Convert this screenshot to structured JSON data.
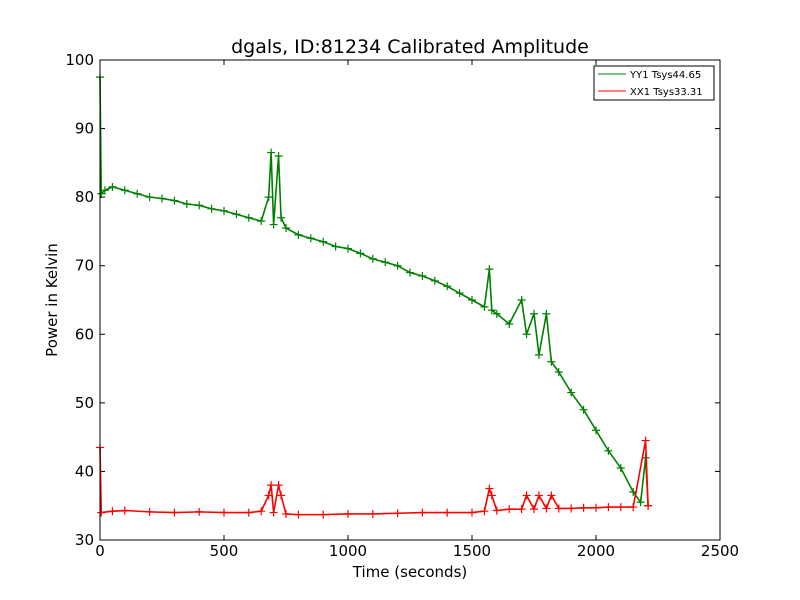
{
  "chart_data": {
    "type": "scatter",
    "title": "dgals, ID:81234 Calibrated Amplitude",
    "xlabel": "Time (seconds)",
    "ylabel": "Power in Kelvin",
    "xlim": [
      0,
      2500
    ],
    "ylim": [
      30,
      100
    ],
    "xticks": [
      0,
      500,
      1000,
      1500,
      2000,
      2500
    ],
    "yticks": [
      30,
      40,
      50,
      60,
      70,
      80,
      90,
      100
    ],
    "xtick_labels": [
      "0",
      "500",
      "1000",
      "1500",
      "2000",
      "2500"
    ],
    "ytick_labels": [
      "30",
      "40",
      "50",
      "60",
      "70",
      "80",
      "90",
      "100"
    ],
    "grid": false,
    "legend_position": "top-right",
    "marker": "+",
    "series": [
      {
        "name": "YY1 Tsys44.65",
        "color": "#008000",
        "x": [
          0,
          5,
          20,
          50,
          100,
          150,
          200,
          250,
          300,
          350,
          400,
          450,
          500,
          550,
          600,
          650,
          680,
          690,
          700,
          720,
          730,
          750,
          800,
          850,
          900,
          950,
          1000,
          1050,
          1100,
          1150,
          1200,
          1250,
          1300,
          1350,
          1400,
          1450,
          1500,
          1550,
          1570,
          1580,
          1600,
          1650,
          1700,
          1720,
          1750,
          1770,
          1800,
          1820,
          1850,
          1900,
          1950,
          2000,
          2050,
          2100,
          2150,
          2180,
          2200,
          2210
        ],
        "y": [
          97.5,
          80.5,
          81.0,
          81.5,
          81.0,
          80.5,
          80.0,
          79.8,
          79.5,
          79.0,
          78.8,
          78.3,
          78.0,
          77.5,
          77.0,
          76.5,
          80.0,
          86.5,
          76.0,
          86.0,
          77.0,
          75.5,
          74.5,
          74.0,
          73.5,
          72.8,
          72.5,
          71.8,
          71.0,
          70.5,
          70.0,
          69.0,
          68.5,
          67.8,
          67.0,
          66.0,
          65.0,
          64.0,
          69.5,
          63.5,
          63.0,
          61.5,
          65.0,
          60.0,
          63.0,
          57.0,
          63.0,
          56.0,
          54.5,
          51.5,
          49.0,
          46.0,
          43.0,
          40.5,
          37.0,
          35.5,
          42.0,
          35.0
        ]
      },
      {
        "name": "XX1 Tsys33.31",
        "color": "#ff0000",
        "x": [
          0,
          5,
          50,
          100,
          200,
          300,
          400,
          500,
          600,
          650,
          680,
          690,
          700,
          720,
          730,
          750,
          800,
          900,
          1000,
          1100,
          1200,
          1300,
          1400,
          1500,
          1550,
          1570,
          1580,
          1600,
          1650,
          1700,
          1720,
          1750,
          1770,
          1800,
          1820,
          1850,
          1900,
          1950,
          2000,
          2050,
          2100,
          2150,
          2200,
          2210
        ],
        "y": [
          43.5,
          34.0,
          34.2,
          34.3,
          34.1,
          34.0,
          34.1,
          34.0,
          34.0,
          34.2,
          36.5,
          38.0,
          34.0,
          38.0,
          36.5,
          33.8,
          33.7,
          33.7,
          33.8,
          33.8,
          33.9,
          34.0,
          34.0,
          34.0,
          34.2,
          37.5,
          36.5,
          34.3,
          34.5,
          34.5,
          36.5,
          34.5,
          36.5,
          34.6,
          36.5,
          34.6,
          34.6,
          34.7,
          34.7,
          34.8,
          34.8,
          34.8,
          44.5,
          35.0
        ]
      }
    ]
  }
}
